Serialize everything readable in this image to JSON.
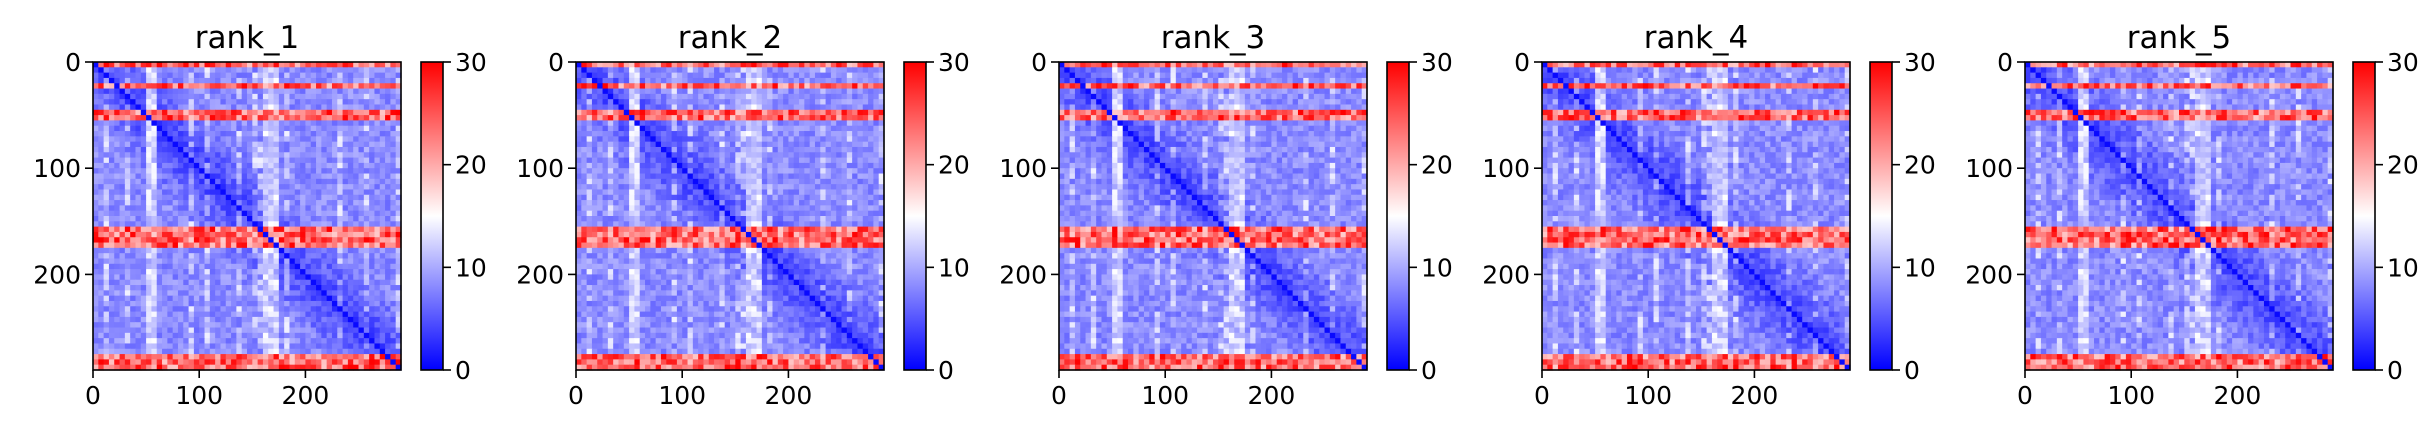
{
  "colors": {
    "cmap_low": "#0000ff",
    "cmap_mid": "#ffffff",
    "cmap_high": "#ff0000"
  },
  "chart_data": [
    {
      "type": "heatmap",
      "title": "rank_1",
      "x_ticks": [
        "0",
        "100",
        "200"
      ],
      "y_ticks": [
        "0",
        "100",
        "200"
      ],
      "colorbar_ticks": [
        "0",
        "10",
        "20",
        "30"
      ],
      "size": 290,
      "clim": [
        0,
        30
      ],
      "cmap": "bwr",
      "high_rows": [
        [
          0,
          5
        ],
        [
          20,
          25
        ],
        [
          45,
          52
        ],
        [
          155,
          172
        ],
        [
          275,
          290
        ]
      ],
      "mid_cols": [
        52,
        165
      ]
    },
    {
      "type": "heatmap",
      "title": "rank_2",
      "x_ticks": [
        "0",
        "100",
        "200"
      ],
      "y_ticks": [
        "0",
        "100",
        "200"
      ],
      "colorbar_ticks": [
        "0",
        "10",
        "20",
        "30"
      ],
      "size": 290,
      "clim": [
        0,
        30
      ],
      "cmap": "bwr",
      "high_rows": [
        [
          0,
          5
        ],
        [
          20,
          25
        ],
        [
          45,
          52
        ],
        [
          155,
          172
        ],
        [
          275,
          290
        ]
      ],
      "mid_cols": [
        52,
        165
      ]
    },
    {
      "type": "heatmap",
      "title": "rank_3",
      "x_ticks": [
        "0",
        "100",
        "200"
      ],
      "y_ticks": [
        "0",
        "100",
        "200"
      ],
      "colorbar_ticks": [
        "0",
        "10",
        "20",
        "30"
      ],
      "size": 290,
      "clim": [
        0,
        30
      ],
      "cmap": "bwr",
      "high_rows": [
        [
          0,
          5
        ],
        [
          20,
          25
        ],
        [
          45,
          52
        ],
        [
          155,
          172
        ],
        [
          275,
          290
        ]
      ],
      "mid_cols": [
        52,
        165
      ]
    },
    {
      "type": "heatmap",
      "title": "rank_4",
      "x_ticks": [
        "0",
        "100",
        "200"
      ],
      "y_ticks": [
        "0",
        "100",
        "200"
      ],
      "colorbar_ticks": [
        "0",
        "10",
        "20",
        "30"
      ],
      "size": 290,
      "clim": [
        0,
        30
      ],
      "cmap": "bwr",
      "high_rows": [
        [
          0,
          5
        ],
        [
          20,
          25
        ],
        [
          45,
          52
        ],
        [
          155,
          172
        ],
        [
          275,
          290
        ]
      ],
      "mid_cols": [
        52,
        165
      ]
    },
    {
      "type": "heatmap",
      "title": "rank_5",
      "x_ticks": [
        "0",
        "100",
        "200"
      ],
      "y_ticks": [
        "0",
        "100",
        "200"
      ],
      "colorbar_ticks": [
        "0",
        "10",
        "20",
        "30"
      ],
      "size": 290,
      "clim": [
        0,
        30
      ],
      "cmap": "bwr",
      "high_rows": [
        [
          0,
          5
        ],
        [
          20,
          25
        ],
        [
          45,
          52
        ],
        [
          155,
          172
        ],
        [
          275,
          290
        ]
      ],
      "mid_cols": [
        52,
        165
      ]
    }
  ]
}
